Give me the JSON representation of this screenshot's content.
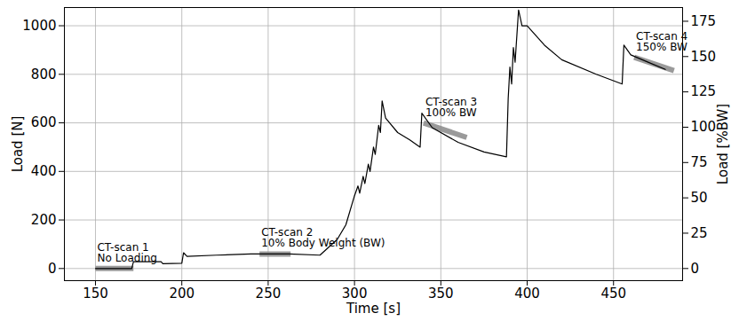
{
  "chart_data": {
    "type": "line",
    "x_label": "Time [s]",
    "y_label": "Load [N]",
    "y2_label": "Load [%BW]",
    "xlim": [
      132,
      490
    ],
    "xticks": [
      150,
      200,
      250,
      300,
      350,
      400,
      450
    ],
    "ylim": [
      -50,
      1075
    ],
    "yticks": [
      0,
      200,
      400,
      600,
      800,
      1000
    ],
    "y2lim": [
      -8.6,
      184.7
    ],
    "y2ticks": [
      0,
      25,
      50,
      75,
      100,
      125,
      150,
      175
    ],
    "grid": true,
    "series": [
      {
        "name": "Load",
        "color": "#000000",
        "x": [
          150,
          171,
          172,
          188,
          189,
          200,
          201,
          203,
          220,
          240,
          262,
          280,
          290,
          295,
          300,
          302,
          303,
          305,
          306,
          308,
          309,
          311,
          312,
          314,
          315,
          316,
          318,
          325,
          332,
          338,
          339,
          345,
          360,
          375,
          388,
          389,
          390,
          391,
          392,
          393,
          395,
          397,
          400,
          410,
          420,
          440,
          455,
          456,
          460,
          470,
          480
        ],
        "values": [
          0,
          0,
          28,
          28,
          20,
          22,
          65,
          50,
          55,
          60,
          60,
          55,
          120,
          180,
          300,
          340,
          310,
          380,
          350,
          430,
          400,
          500,
          470,
          590,
          560,
          690,
          620,
          560,
          530,
          500,
          640,
          580,
          520,
          480,
          460,
          700,
          830,
          760,
          910,
          850,
          1065,
          1000,
          1000,
          920,
          860,
          800,
          760,
          920,
          880,
          850,
          820
        ]
      }
    ],
    "scans": [
      {
        "label": "CT-scan 1\nNo Loading",
        "x": [
          150,
          172
        ],
        "y": [
          0,
          0
        ]
      },
      {
        "label": "CT-scan 2\n10% Body Weight (BW)",
        "x": [
          245,
          263
        ],
        "y": [
          60,
          60
        ]
      },
      {
        "label": "CT-scan 3\n100% BW",
        "x": [
          340,
          365
        ],
        "y": [
          600,
          540
        ]
      },
      {
        "label": "CT-scan 4\n150% BW",
        "x": [
          462,
          485
        ],
        "y": [
          870,
          815
        ]
      }
    ]
  }
}
